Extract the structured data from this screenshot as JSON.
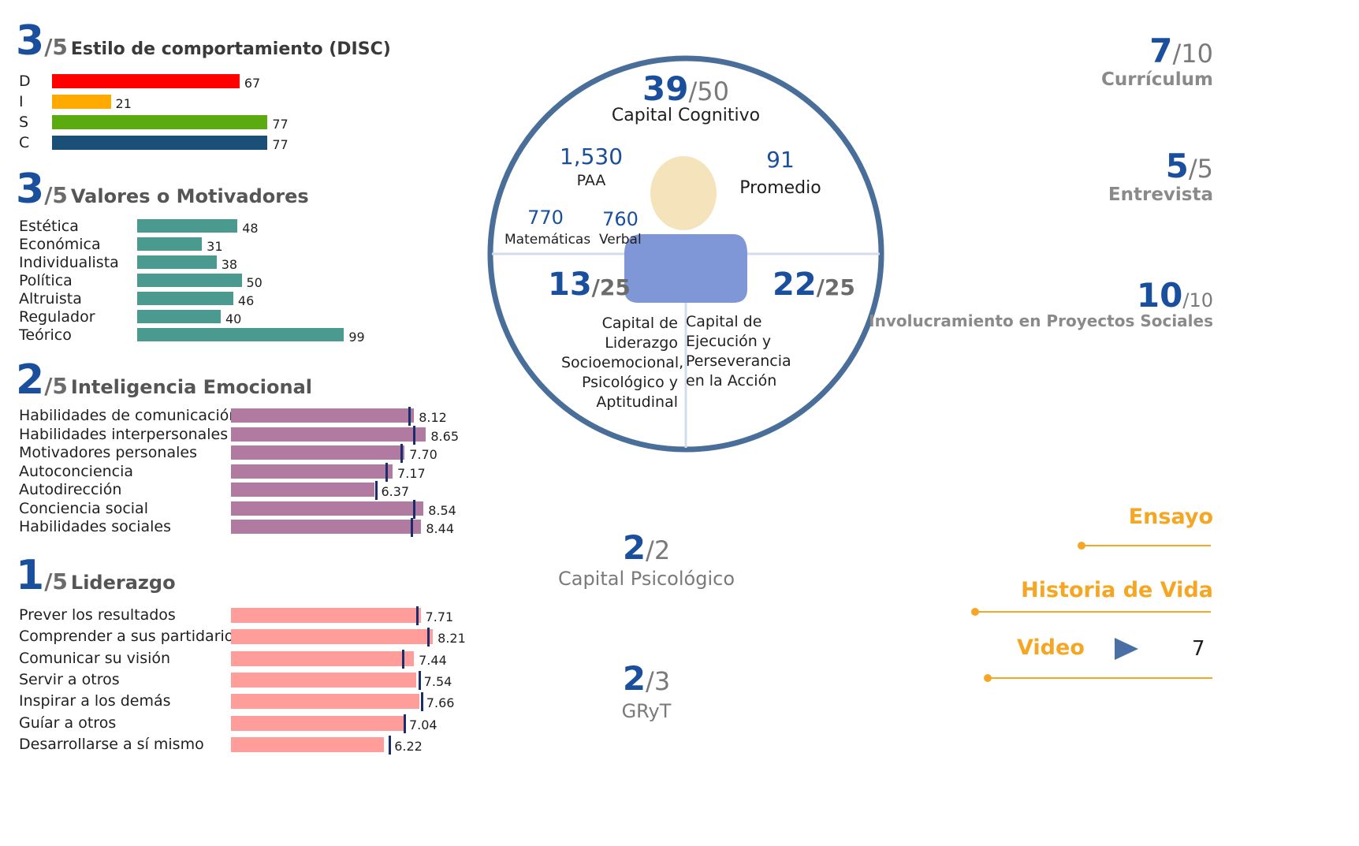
{
  "disc": {
    "score": "3",
    "denom": "/5",
    "title": "Estilo de comportamiento (DISC)",
    "rows": [
      {
        "label": "D",
        "value": 67,
        "display": "67",
        "color": "#ff0000"
      },
      {
        "label": "I",
        "value": 21,
        "display": "21",
        "color": "#ffaa00"
      },
      {
        "label": "S",
        "value": 77,
        "display": "77",
        "color": "#5aaa10"
      },
      {
        "label": "C",
        "value": 77,
        "display": "77",
        "color": "#1a4f78"
      }
    ]
  },
  "valores": {
    "score": "3",
    "denom": "/5",
    "title": "Valores o Motivadores",
    "color": "#4a9a90",
    "rows": [
      {
        "label": "Estética",
        "value": 48,
        "display": "48"
      },
      {
        "label": "Económica",
        "value": 31,
        "display": "31"
      },
      {
        "label": "Individualista",
        "value": 38,
        "display": "38"
      },
      {
        "label": "Política",
        "value": 50,
        "display": "50"
      },
      {
        "label": "Altruista",
        "value": 46,
        "display": "46"
      },
      {
        "label": "Regulador",
        "value": 40,
        "display": "40"
      },
      {
        "label": "Teórico",
        "value": 99,
        "display": "99"
      }
    ]
  },
  "inteligencia": {
    "score": "2",
    "denom": "/5",
    "title": "Inteligencia Emocional",
    "color": "#b07aa1",
    "rows": [
      {
        "label": "Habilidades de comunicación",
        "value": 8.12,
        "display": "8.12",
        "marker": 7.9
      },
      {
        "label": "Habilidades interpersonales",
        "value": 8.65,
        "display": "8.65",
        "marker": 8.1
      },
      {
        "label": "Motivadores personales",
        "value": 7.7,
        "display": "7.70",
        "marker": 7.55
      },
      {
        "label": "Autoconciencia",
        "value": 7.17,
        "display": "7.17",
        "marker": 6.9
      },
      {
        "label": "Autodirección",
        "value": 6.37,
        "display": "6.37",
        "marker": 6.45
      },
      {
        "label": "Conciencia social",
        "value": 8.54,
        "display": "8.54",
        "marker": 8.1
      },
      {
        "label": "Habilidades sociales",
        "value": 8.44,
        "display": "8.44",
        "marker": 8.0
      }
    ]
  },
  "liderazgo": {
    "score": "1",
    "denom": "/5",
    "title": "Liderazgo",
    "color": "#ff9d9a",
    "rows": [
      {
        "label": "Prever los resultados",
        "value": 7.71,
        "display": "7.71",
        "marker": 7.55
      },
      {
        "label": "Comprender a sus partidarios",
        "value": 8.21,
        "display": "8.21",
        "marker": 8.0
      },
      {
        "label": "Comunicar su visión",
        "value": 7.44,
        "display": "7.44",
        "marker": 7.0
      },
      {
        "label": "Servir a otros",
        "value": 7.54,
        "display": "7.54",
        "marker": 7.65
      },
      {
        "label": "Inspirar a los demás",
        "value": 7.66,
        "display": "7.66",
        "marker": 7.75
      },
      {
        "label": "Guíar a otros",
        "value": 7.04,
        "display": "7.04",
        "marker": 7.05
      },
      {
        "label": "Desarrollarse a sí mismo",
        "value": 6.22,
        "display": "6.22",
        "marker": 6.45
      }
    ]
  },
  "center": {
    "cognitivo": {
      "score": "39",
      "denom": "/50",
      "label": "Capital Cognitivo"
    },
    "paa": {
      "value": "1,530",
      "label": "PAA"
    },
    "promedio": {
      "value": "91",
      "label": "Promedio"
    },
    "matematicas": {
      "value": "770",
      "label": "Matemáticas"
    },
    "verbal": {
      "value": "760",
      "label": "Verbal"
    },
    "liderazgo": {
      "score": "13",
      "denom": "/25",
      "label": "Capital de Liderazgo Socioemocional, Psicológico y Aptitudinal"
    },
    "ejecucion": {
      "score": "22",
      "denom": "/25",
      "label": "Capital de Ejecución y Perseverancia en la Acción"
    },
    "circle_color": "#4a6e9a",
    "person_head_color": "#f5e3bb",
    "person_body_color": "#7f97d6"
  },
  "psicologico": {
    "score": "2",
    "denom": "/2",
    "label": "Capital Psicológico"
  },
  "gryt": {
    "score": "2",
    "denom": "/3",
    "label": "GRyT"
  },
  "right": {
    "curriculum": {
      "score": "7",
      "denom": "/10",
      "label": "Currículum"
    },
    "entrevista": {
      "score": "5",
      "denom": "/5",
      "label": "Entrevista"
    },
    "proyectos": {
      "score": "10",
      "denom": "/10",
      "label": "Involucramiento en Proyectos Sociales"
    },
    "ensayo": "Ensayo",
    "historia": "Historia de Vida",
    "video": "Video",
    "video_value": "7",
    "accent": "#f5a623"
  }
}
